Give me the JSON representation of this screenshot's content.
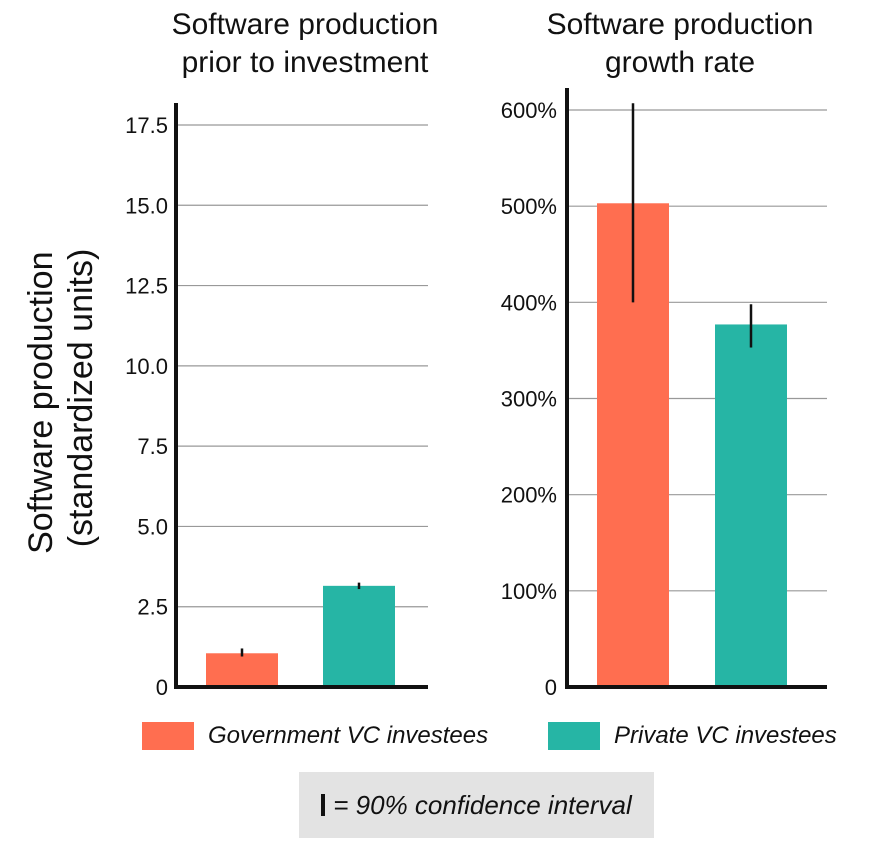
{
  "colors": {
    "government": "#ff6e50",
    "private": "#26b5a5",
    "grid": "#999999",
    "axis": "#111111"
  },
  "y_axis_label": [
    "Software production",
    "(standardized units)"
  ],
  "legend": [
    {
      "name": "Government VC investees",
      "color": "#ff6e50"
    },
    {
      "name": "Private VC investees",
      "color": "#26b5a5"
    }
  ],
  "note": {
    "text": "= 90% confidence interval"
  },
  "chart_data": [
    {
      "type": "bar",
      "title": [
        "Software production",
        "prior to investment"
      ],
      "ylim": [
        0,
        17.5
      ],
      "yticks": [
        0,
        2.5,
        5.0,
        7.5,
        10.0,
        12.5,
        15.0,
        17.5
      ],
      "ytick_labels": [
        "0",
        "2.5",
        "5.0",
        "7.5",
        "10.0",
        "12.5",
        "15.0",
        "17.5"
      ],
      "grid": true,
      "categories": [
        "Government VC investees",
        "Private VC investees"
      ],
      "values": [
        1.05,
        3.15
      ],
      "ci_low": [
        0.95,
        3.05
      ],
      "ci_high": [
        1.2,
        3.25
      ]
    },
    {
      "type": "bar",
      "title": [
        "Software production",
        "growth rate"
      ],
      "ylim": [
        0,
        600
      ],
      "yticks": [
        0,
        100,
        200,
        300,
        400,
        500,
        600
      ],
      "ytick_labels": [
        "0",
        "100%",
        "200%",
        "300%",
        "400%",
        "500%",
        "600%"
      ],
      "grid": true,
      "categories": [
        "Government VC investees",
        "Private VC investees"
      ],
      "values": [
        503,
        377
      ],
      "ci_low": [
        400,
        353
      ],
      "ci_high": [
        607,
        398
      ]
    }
  ]
}
